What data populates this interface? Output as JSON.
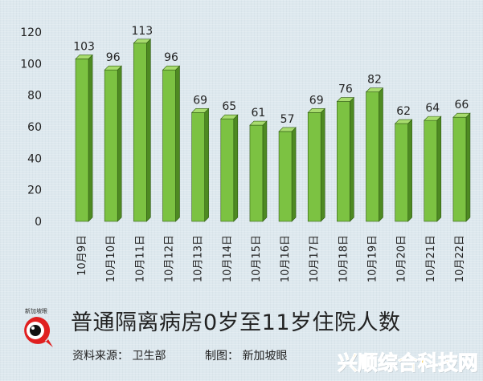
{
  "chart_data": {
    "type": "bar",
    "title": "",
    "xlabel": "",
    "ylabel": "",
    "ylim": [
      0,
      120
    ],
    "yticks": [
      0,
      20,
      40,
      60,
      80,
      100,
      120
    ],
    "grid": false,
    "categories": [
      "10月9日",
      "10月10日",
      "10月11日",
      "10月12日",
      "10月13日",
      "10月14日",
      "10月15日",
      "10月16日",
      "10月17日",
      "10月18日",
      "10月19日",
      "10月20日",
      "10月21日",
      "10月22日"
    ],
    "values": [
      103,
      96,
      113,
      96,
      69,
      65,
      61,
      57,
      69,
      76,
      82,
      62,
      64,
      66
    ],
    "bar_color": "#7cc242",
    "bar_top_color": "#a8dc6e",
    "bar_side_color": "#4e8a22"
  },
  "caption": {
    "title": "普通隔离病房0岁至11岁住院人数",
    "source": "资料来源： 卫生部",
    "credit": "制图： 新加坡眼"
  },
  "logo": {
    "text": "新加坡眼",
    "icon": "eye-logo-icon"
  },
  "watermark": "兴顺综合科技网"
}
